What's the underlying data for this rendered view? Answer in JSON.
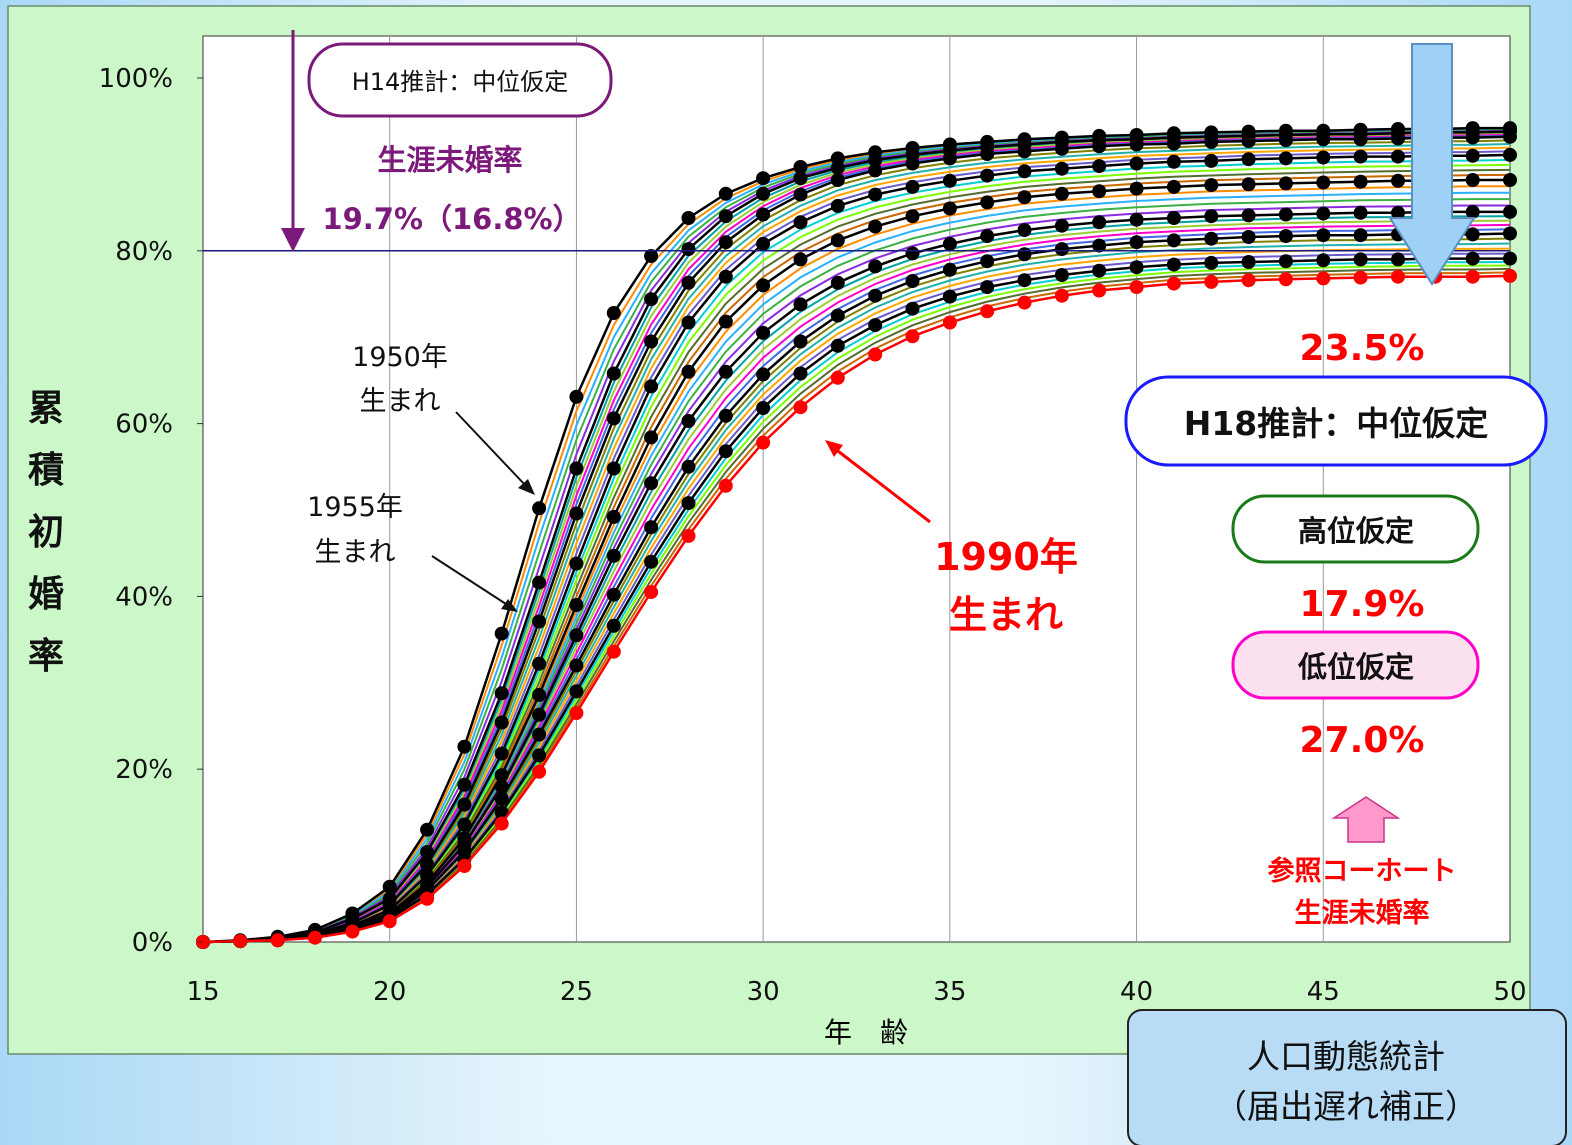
{
  "chart_data": {
    "type": "line",
    "xlabel": "年　齢",
    "ylabel": "累積初婚率",
    "xlim": [
      15,
      50
    ],
    "ylim": [
      0,
      1.0
    ],
    "x_ticks": [
      "15",
      "20",
      "25",
      "30",
      "35",
      "40",
      "45",
      "50"
    ],
    "y_ticks": [
      "0%",
      "20%",
      "40%",
      "60%",
      "80%",
      "100%"
    ],
    "grid": "vertical",
    "reference_line": {
      "y": 0.8
    },
    "x": [
      15,
      16,
      17,
      18,
      19,
      20,
      21,
      22,
      23,
      24,
      25,
      26,
      27,
      28,
      29,
      30,
      31,
      32,
      33,
      34,
      35,
      36,
      37,
      38,
      39,
      40,
      41,
      42,
      43,
      44,
      45,
      46,
      47,
      48,
      49,
      50
    ],
    "series": [
      {
        "name": "1950年生まれ",
        "marker": "black",
        "values": [
          0.0,
          0.002,
          0.006,
          0.014,
          0.033,
          0.064,
          0.13,
          0.226,
          0.357,
          0.502,
          0.631,
          0.728,
          0.794,
          0.838,
          0.866,
          0.884,
          0.897,
          0.907,
          0.914,
          0.919,
          0.923,
          0.926,
          0.929,
          0.931,
          0.933,
          0.934,
          0.936,
          0.937,
          0.938,
          0.939,
          0.939,
          0.94,
          0.941,
          0.941,
          0.942,
          0.942
        ]
      },
      {
        "name": "1955年生まれ",
        "marker": "black",
        "values": [
          0.0,
          0.001,
          0.005,
          0.011,
          0.027,
          0.05,
          0.104,
          0.182,
          0.288,
          0.416,
          0.548,
          0.658,
          0.744,
          0.802,
          0.84,
          0.866,
          0.884,
          0.896,
          0.905,
          0.911,
          0.916,
          0.92,
          0.923,
          0.926,
          0.928,
          0.929,
          0.931,
          0.932,
          0.933,
          0.934,
          0.935,
          0.935,
          0.936,
          0.937,
          0.937,
          0.938
        ]
      },
      {
        "values": [
          0.0,
          0.001,
          0.004,
          0.009,
          0.022,
          0.043,
          0.09,
          0.159,
          0.254,
          0.371,
          0.496,
          0.606,
          0.695,
          0.763,
          0.81,
          0.842,
          0.865,
          0.882,
          0.893,
          0.901,
          0.907,
          0.912,
          0.915,
          0.918,
          0.921,
          0.923,
          0.924,
          0.926,
          0.927,
          0.928,
          0.929,
          0.929,
          0.93,
          0.931,
          0.931,
          0.932
        ],
        "marker": "black"
      },
      {
        "values": [
          0.0,
          0.001,
          0.003,
          0.008,
          0.019,
          0.037,
          0.077,
          0.136,
          0.218,
          0.322,
          0.438,
          0.548,
          0.643,
          0.717,
          0.77,
          0.808,
          0.833,
          0.852,
          0.865,
          0.874,
          0.881,
          0.887,
          0.892,
          0.895,
          0.898,
          0.901,
          0.903,
          0.904,
          0.906,
          0.907,
          0.908,
          0.909,
          0.909,
          0.91,
          0.91,
          0.911
        ],
        "marker": "black"
      },
      {
        "values": [
          0.0,
          0.001,
          0.003,
          0.007,
          0.017,
          0.033,
          0.068,
          0.12,
          0.193,
          0.286,
          0.39,
          0.492,
          0.584,
          0.66,
          0.718,
          0.76,
          0.79,
          0.812,
          0.828,
          0.84,
          0.849,
          0.856,
          0.862,
          0.866,
          0.869,
          0.872,
          0.874,
          0.876,
          0.877,
          0.878,
          0.879,
          0.88,
          0.881,
          0.881,
          0.882,
          0.882
        ],
        "marker": "black"
      },
      {
        "values": [
          0.0,
          0.001,
          0.003,
          0.007,
          0.016,
          0.031,
          0.064,
          0.113,
          0.18,
          0.263,
          0.355,
          0.447,
          0.531,
          0.603,
          0.66,
          0.705,
          0.738,
          0.763,
          0.782,
          0.797,
          0.808,
          0.817,
          0.824,
          0.829,
          0.833,
          0.836,
          0.838,
          0.84,
          0.841,
          0.842,
          0.843,
          0.844,
          0.844,
          0.845,
          0.845,
          0.845
        ],
        "marker": "black"
      },
      {
        "values": [
          0.0,
          0.001,
          0.003,
          0.006,
          0.015,
          0.029,
          0.06,
          0.105,
          0.166,
          0.24,
          0.32,
          0.402,
          0.48,
          0.55,
          0.609,
          0.657,
          0.695,
          0.725,
          0.748,
          0.765,
          0.778,
          0.788,
          0.796,
          0.802,
          0.806,
          0.81,
          0.812,
          0.814,
          0.816,
          0.817,
          0.818,
          0.818,
          0.819,
          0.819,
          0.819,
          0.82
        ],
        "marker": "black"
      },
      {
        "values": [
          0.0,
          0.001,
          0.002,
          0.006,
          0.014,
          0.027,
          0.055,
          0.096,
          0.15,
          0.216,
          0.29,
          0.366,
          0.44,
          0.508,
          0.568,
          0.618,
          0.658,
          0.69,
          0.714,
          0.733,
          0.747,
          0.758,
          0.766,
          0.772,
          0.777,
          0.781,
          0.784,
          0.786,
          0.787,
          0.788,
          0.789,
          0.79,
          0.79,
          0.791,
          0.791,
          0.791
        ],
        "marker": "black"
      },
      {
        "values": [
          0.0,
          0.001,
          0.002,
          0.005,
          0.012,
          0.024,
          0.05,
          0.088,
          0.137,
          0.197,
          0.265,
          0.336,
          0.405,
          0.47,
          0.528,
          0.578,
          0.619,
          0.653,
          0.68,
          0.701,
          0.717,
          0.73,
          0.74,
          0.748,
          0.754,
          0.758,
          0.762,
          0.764,
          0.766,
          0.767,
          0.768,
          0.769,
          0.77,
          0.77,
          0.77,
          0.771
        ],
        "marker": "red"
      }
    ]
  },
  "annotations": {
    "h14_box": "H14推計：中位仮定",
    "h14_title": "生涯未婚率",
    "h14_value": "19.7%（16.8%）",
    "label_1950_line1": "1950年",
    "label_1950_line2": "生まれ",
    "label_1955_line1": "1955年",
    "label_1955_line2": "生まれ",
    "label_1990_line1": "1990年",
    "label_1990_line2": "生まれ",
    "h18_value": "23.5%",
    "h18_box": "H18推計：中位仮定",
    "high_box": "高位仮定",
    "high_value": "17.9%",
    "low_box": "低位仮定",
    "low_value": "27.0%",
    "reference_line1": "参照コーホート",
    "reference_line2": "生涯未婚率",
    "source_line1": "人口動態統計",
    "source_line2": "（届出遅れ補正）"
  },
  "colors": {
    "panel_bg": "#ccf8c9",
    "accent_purple": "#7b1a7b",
    "accent_red": "#ff0000",
    "accent_blue": "#1a1aff",
    "accent_green": "#1a7a1a",
    "accent_magenta": "#ff00cc",
    "arrow_blue": "#9fd0f5",
    "arrow_pink": "#ff99cc"
  }
}
